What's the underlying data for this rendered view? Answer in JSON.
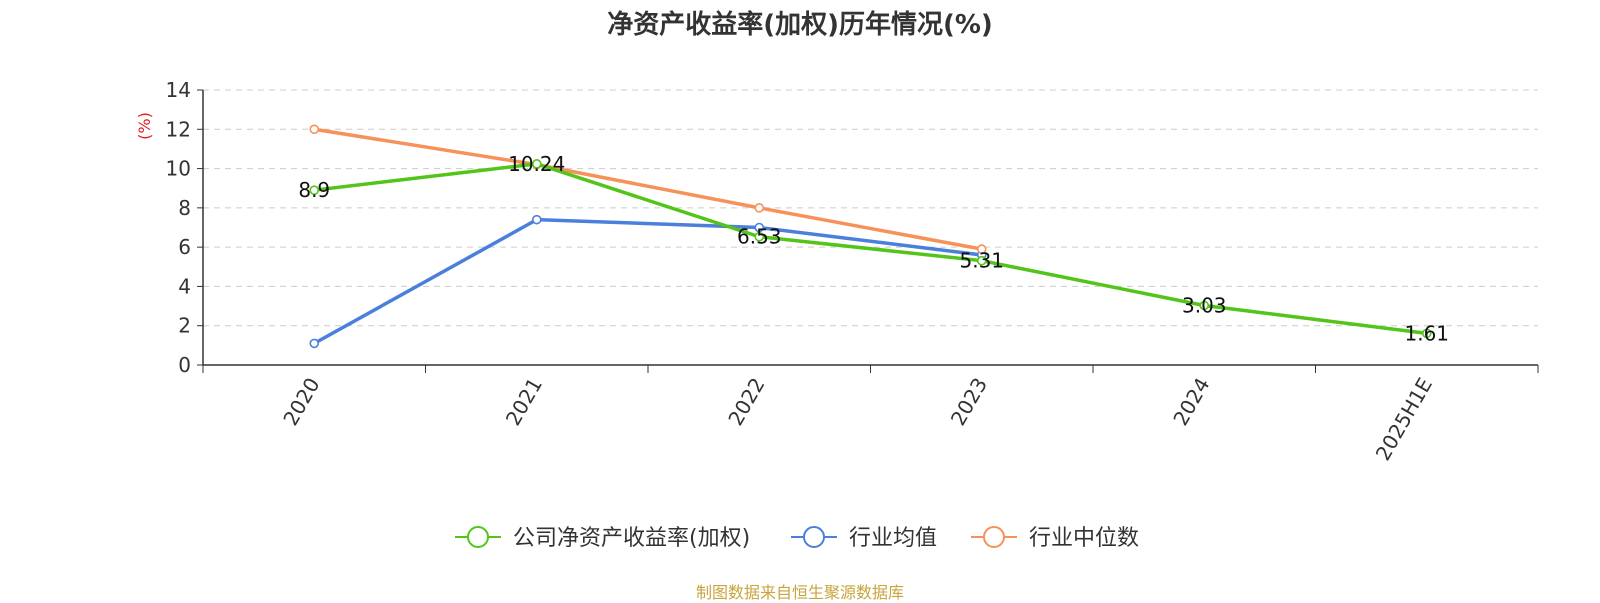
{
  "chart_data": {
    "type": "line",
    "title": "净资产收益率(加权)历年情况(%)",
    "ylabel": "(%)",
    "ylim": [
      0,
      14
    ],
    "yticks": [
      0,
      2,
      4,
      6,
      8,
      10,
      12,
      14
    ],
    "categories": [
      "2020",
      "2021",
      "2022",
      "2023",
      "2024",
      "2025H1E"
    ],
    "grid": true,
    "legend_position": "bottom",
    "series": [
      {
        "name": "公司净资产收益率(加权)",
        "color": "#52c41a",
        "values": [
          8.9,
          10.24,
          6.53,
          5.31,
          3.03,
          1.61
        ],
        "show_labels": true
      },
      {
        "name": "行业均值",
        "color": "#4a7fdc",
        "values": [
          1.1,
          7.4,
          7.0,
          5.6,
          null,
          null
        ],
        "show_labels": false
      },
      {
        "name": "行业中位数",
        "color": "#f7915a",
        "values": [
          12.0,
          10.2,
          8.0,
          5.9,
          null,
          null
        ],
        "show_labels": false
      }
    ],
    "data_labels": [
      "8.9",
      "10.24",
      "6.53",
      "5.31",
      "3.03",
      "1.61"
    ]
  },
  "footer": {
    "source": "制图数据来自恒生聚源数据库"
  },
  "colors": {
    "unit_label": "#e02020",
    "grid": "#cccccc",
    "axis": "#333333",
    "source": "#c8a43c"
  }
}
